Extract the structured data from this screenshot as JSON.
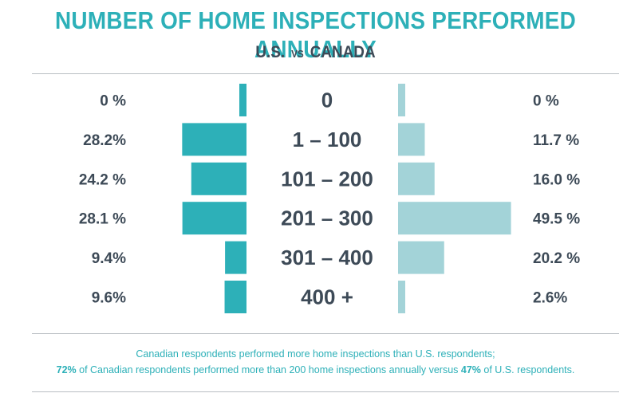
{
  "title": "NUMBER OF HOME INSPECTIONS PERFORMED ANNUALLY",
  "subtitle": {
    "left": "U.S.",
    "vs": "VS",
    "right": "CANADA"
  },
  "colors": {
    "us": "#2db0b8",
    "canada": "#a3d3d8",
    "text": "#3d4a57",
    "accent": "#2db0b8"
  },
  "chart_data": {
    "type": "bar",
    "categories": [
      "0",
      "1 – 100",
      "101 – 200",
      "201 – 300",
      "301 – 400",
      "400 +"
    ],
    "series": [
      {
        "name": "U.S.",
        "values": [
          0,
          28.2,
          24.2,
          28.1,
          9.4,
          9.6
        ],
        "labels": [
          "0 %",
          "28.2%",
          "24.2 %",
          "28.1 %",
          "9.4%",
          "9.6%"
        ]
      },
      {
        "name": "CANADA",
        "values": [
          0,
          11.7,
          16.0,
          49.5,
          20.2,
          2.6
        ],
        "labels": [
          "0 %",
          "11.7 %",
          "16.0 %",
          "49.5 %",
          "20.2 %",
          "2.6%"
        ]
      }
    ]
  },
  "footnote": {
    "line1": "Canadian respondents performed more home inspections than U.S. respondents;",
    "line2_pct1": "72%",
    "line2_mid": " of Canadian respondents performed more than 200 home inspections annually versus ",
    "line2_pct2": "47%",
    "line2_end": " of U.S. respondents."
  }
}
